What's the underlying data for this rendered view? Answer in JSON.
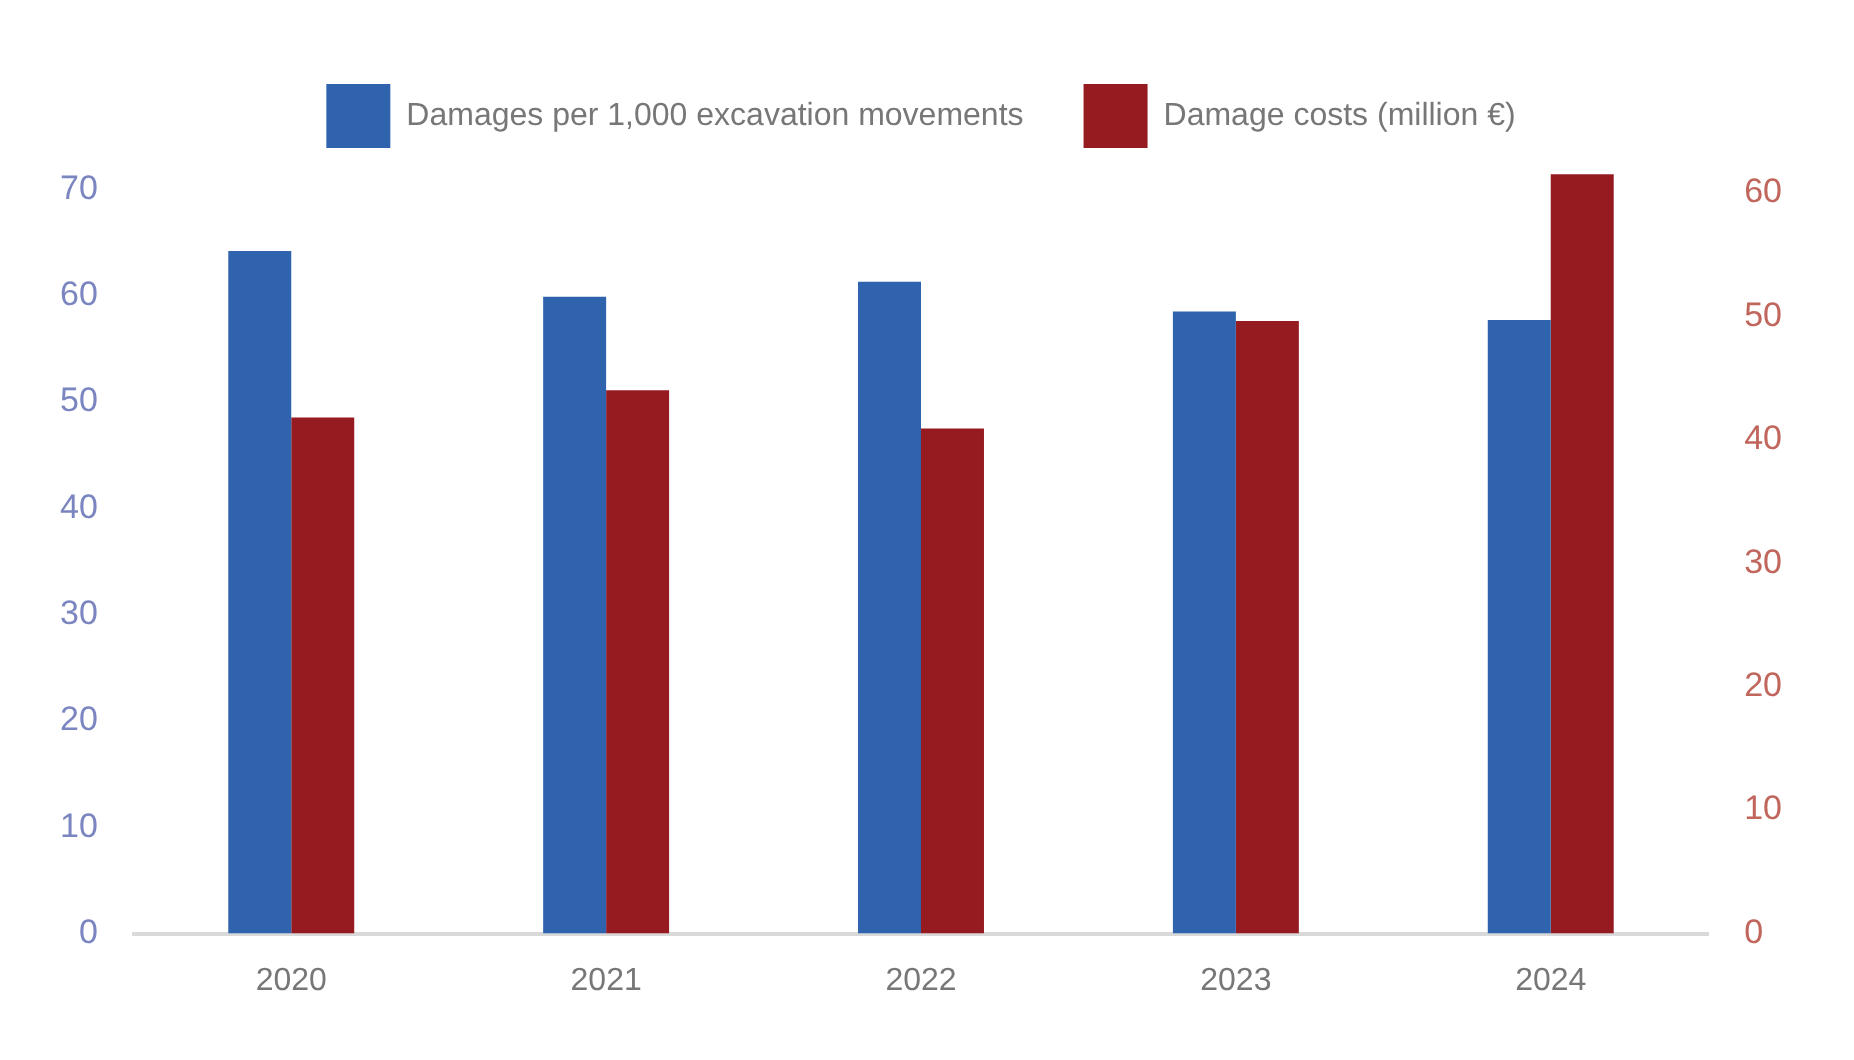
{
  "chart_data": {
    "type": "bar",
    "categories": [
      "2020",
      "2021",
      "2022",
      "2023",
      "2024"
    ],
    "series": [
      {
        "name": "Damages per 1,000 excavation movements",
        "color": "#3063ae",
        "values": [
          64.2,
          59.9,
          61.3,
          58.5,
          57.7
        ]
      },
      {
        "name": "Damage costs (million €)",
        "color": "#951b20",
        "values": [
          41.8,
          44.0,
          40.9,
          49.6,
          61.5
        ],
        "axis": "y2"
      }
    ],
    "ylim": [
      0,
      72
    ],
    "yticks": [
      0,
      10,
      20,
      30,
      40,
      50,
      60,
      70
    ],
    "y2lim": [
      0,
      62
    ],
    "y2ticks": [
      0,
      10,
      20,
      30,
      40,
      50,
      60
    ],
    "grid": false,
    "legend": "top"
  }
}
